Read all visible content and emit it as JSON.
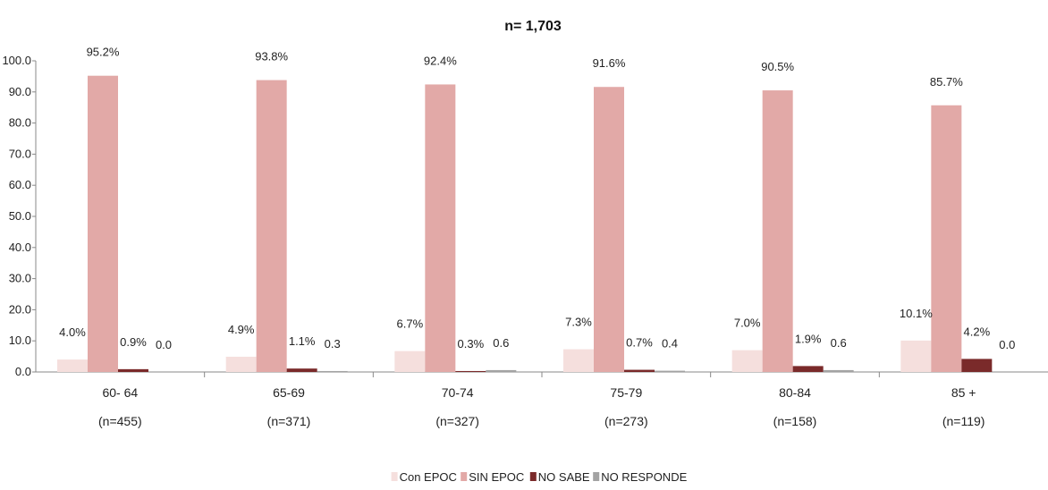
{
  "chart_data": {
    "type": "bar",
    "title": "n= 1,703",
    "xlabel": "",
    "ylabel": "",
    "ylim": [
      0,
      100
    ],
    "yticks": [
      "0.0",
      "10.0",
      "20.0",
      "30.0",
      "40.0",
      "50.0",
      "60.0",
      "70.0",
      "80.0",
      "90.0",
      "100.0"
    ],
    "grid": false,
    "legend_position": "bottom",
    "categories": [
      {
        "line1": "60- 64",
        "line2": "(n=455)"
      },
      {
        "line1": "65-69",
        "line2": "(n=371)"
      },
      {
        "line1": "70-74",
        "line2": "(n=327)"
      },
      {
        "line1": "75-79",
        "line2": "(n=273)"
      },
      {
        "line1": "80-84",
        "line2": "(n=158)"
      },
      {
        "line1": "85 +",
        "line2": "(n=119)"
      }
    ],
    "series": [
      {
        "name": "Con EPOC",
        "color": "#f5dfdd",
        "values": [
          4.0,
          4.9,
          6.7,
          7.3,
          7.0,
          10.1
        ],
        "labels": [
          "4.0%",
          "4.9%",
          "6.7%",
          "7.3%",
          "7.0%",
          "10.1%"
        ]
      },
      {
        "name": "SIN EPOC",
        "color": "#e2a9a7",
        "values": [
          95.2,
          93.8,
          92.4,
          91.6,
          90.5,
          85.7
        ],
        "labels": [
          "95.2%",
          "93.8%",
          "92.4%",
          "91.6%",
          "90.5%",
          "85.7%"
        ]
      },
      {
        "name": "NO SABE",
        "color": "#7a2a2a",
        "values": [
          0.9,
          1.1,
          0.3,
          0.7,
          1.9,
          4.2
        ],
        "labels": [
          "0.9%",
          "1.1%",
          "0.3%",
          "0.7%",
          "1.9%",
          "4.2%"
        ]
      },
      {
        "name": "NO RESPONDE",
        "color": "#a3a3a3",
        "values": [
          0.0,
          0.3,
          0.6,
          0.4,
          0.6,
          0.0
        ],
        "labels": [
          "0.0",
          "0.3",
          "0.6",
          "0.4",
          "0.6",
          "0.0"
        ]
      }
    ]
  }
}
